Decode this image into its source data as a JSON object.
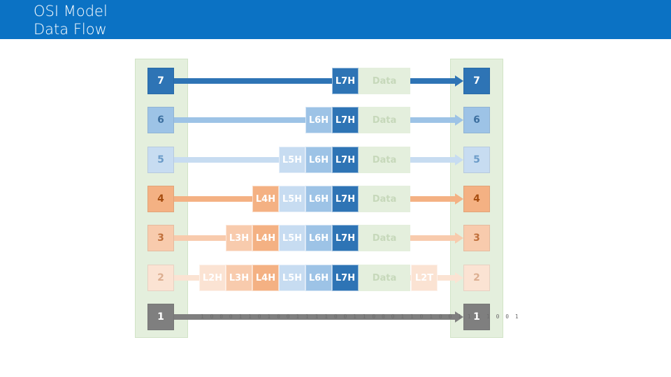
{
  "header": {
    "title_line1": "OSI Model",
    "title_line2": "Data Flow",
    "bg_color": "#0b72c4"
  },
  "layers": [
    {
      "num": "7",
      "fill": "#2e74b5",
      "text": "#ffffff"
    },
    {
      "num": "6",
      "fill": "#9dc3e6",
      "text": "#3c6f9f"
    },
    {
      "num": "5",
      "fill": "#c7dcf1",
      "text": "#6b9bc8"
    },
    {
      "num": "4",
      "fill": "#f4b183",
      "text": "#a64d10"
    },
    {
      "num": "3",
      "fill": "#f8cbad",
      "text": "#c0703c"
    },
    {
      "num": "2",
      "fill": "#fbe3d3",
      "text": "#dcae90"
    },
    {
      "num": "1",
      "fill": "#7f7f7f",
      "text": "#ffffff"
    }
  ],
  "headers": {
    "L7H": {
      "label": "L7H",
      "fill": "#2e74b5",
      "text": "#ffffff"
    },
    "L6H": {
      "label": "L6H",
      "fill": "#9dc3e6",
      "text": "#ffffff"
    },
    "L5H": {
      "label": "L5H",
      "fill": "#c7dcf1",
      "text": "#ffffff"
    },
    "L4H": {
      "label": "L4H",
      "fill": "#f4b183",
      "text": "#ffffff"
    },
    "L3H": {
      "label": "L3H",
      "fill": "#f8cbad",
      "text": "#ffffff"
    },
    "L2H": {
      "label": "L2H",
      "fill": "#fbe3d3",
      "text": "#ffffff"
    },
    "L2T": {
      "label": "L2T",
      "fill": "#fbe3d3",
      "text": "#ffffff"
    }
  },
  "data_label": "Data",
  "bits": "1 0 0 0 1 1 0 1 0 0 1 1 1 1 0 0 1 1 0 0 0 1 1 0 1 0 0 1 1 1 1 0 0 1",
  "flows": [
    {
      "layer": "7",
      "headers": [
        "L7H"
      ],
      "trailer": false
    },
    {
      "layer": "6",
      "headers": [
        "L6H",
        "L7H"
      ],
      "trailer": false
    },
    {
      "layer": "5",
      "headers": [
        "L5H",
        "L6H",
        "L7H"
      ],
      "trailer": false
    },
    {
      "layer": "4",
      "headers": [
        "L4H",
        "L5H",
        "L6H",
        "L7H"
      ],
      "trailer": false
    },
    {
      "layer": "3",
      "headers": [
        "L3H",
        "L4H",
        "L5H",
        "L6H",
        "L7H"
      ],
      "trailer": false
    },
    {
      "layer": "2",
      "headers": [
        "L2H",
        "L3H",
        "L4H",
        "L5H",
        "L6H",
        "L7H"
      ],
      "trailer": true
    },
    {
      "layer": "1",
      "headers": [],
      "trailer": false,
      "bits": true
    }
  ]
}
